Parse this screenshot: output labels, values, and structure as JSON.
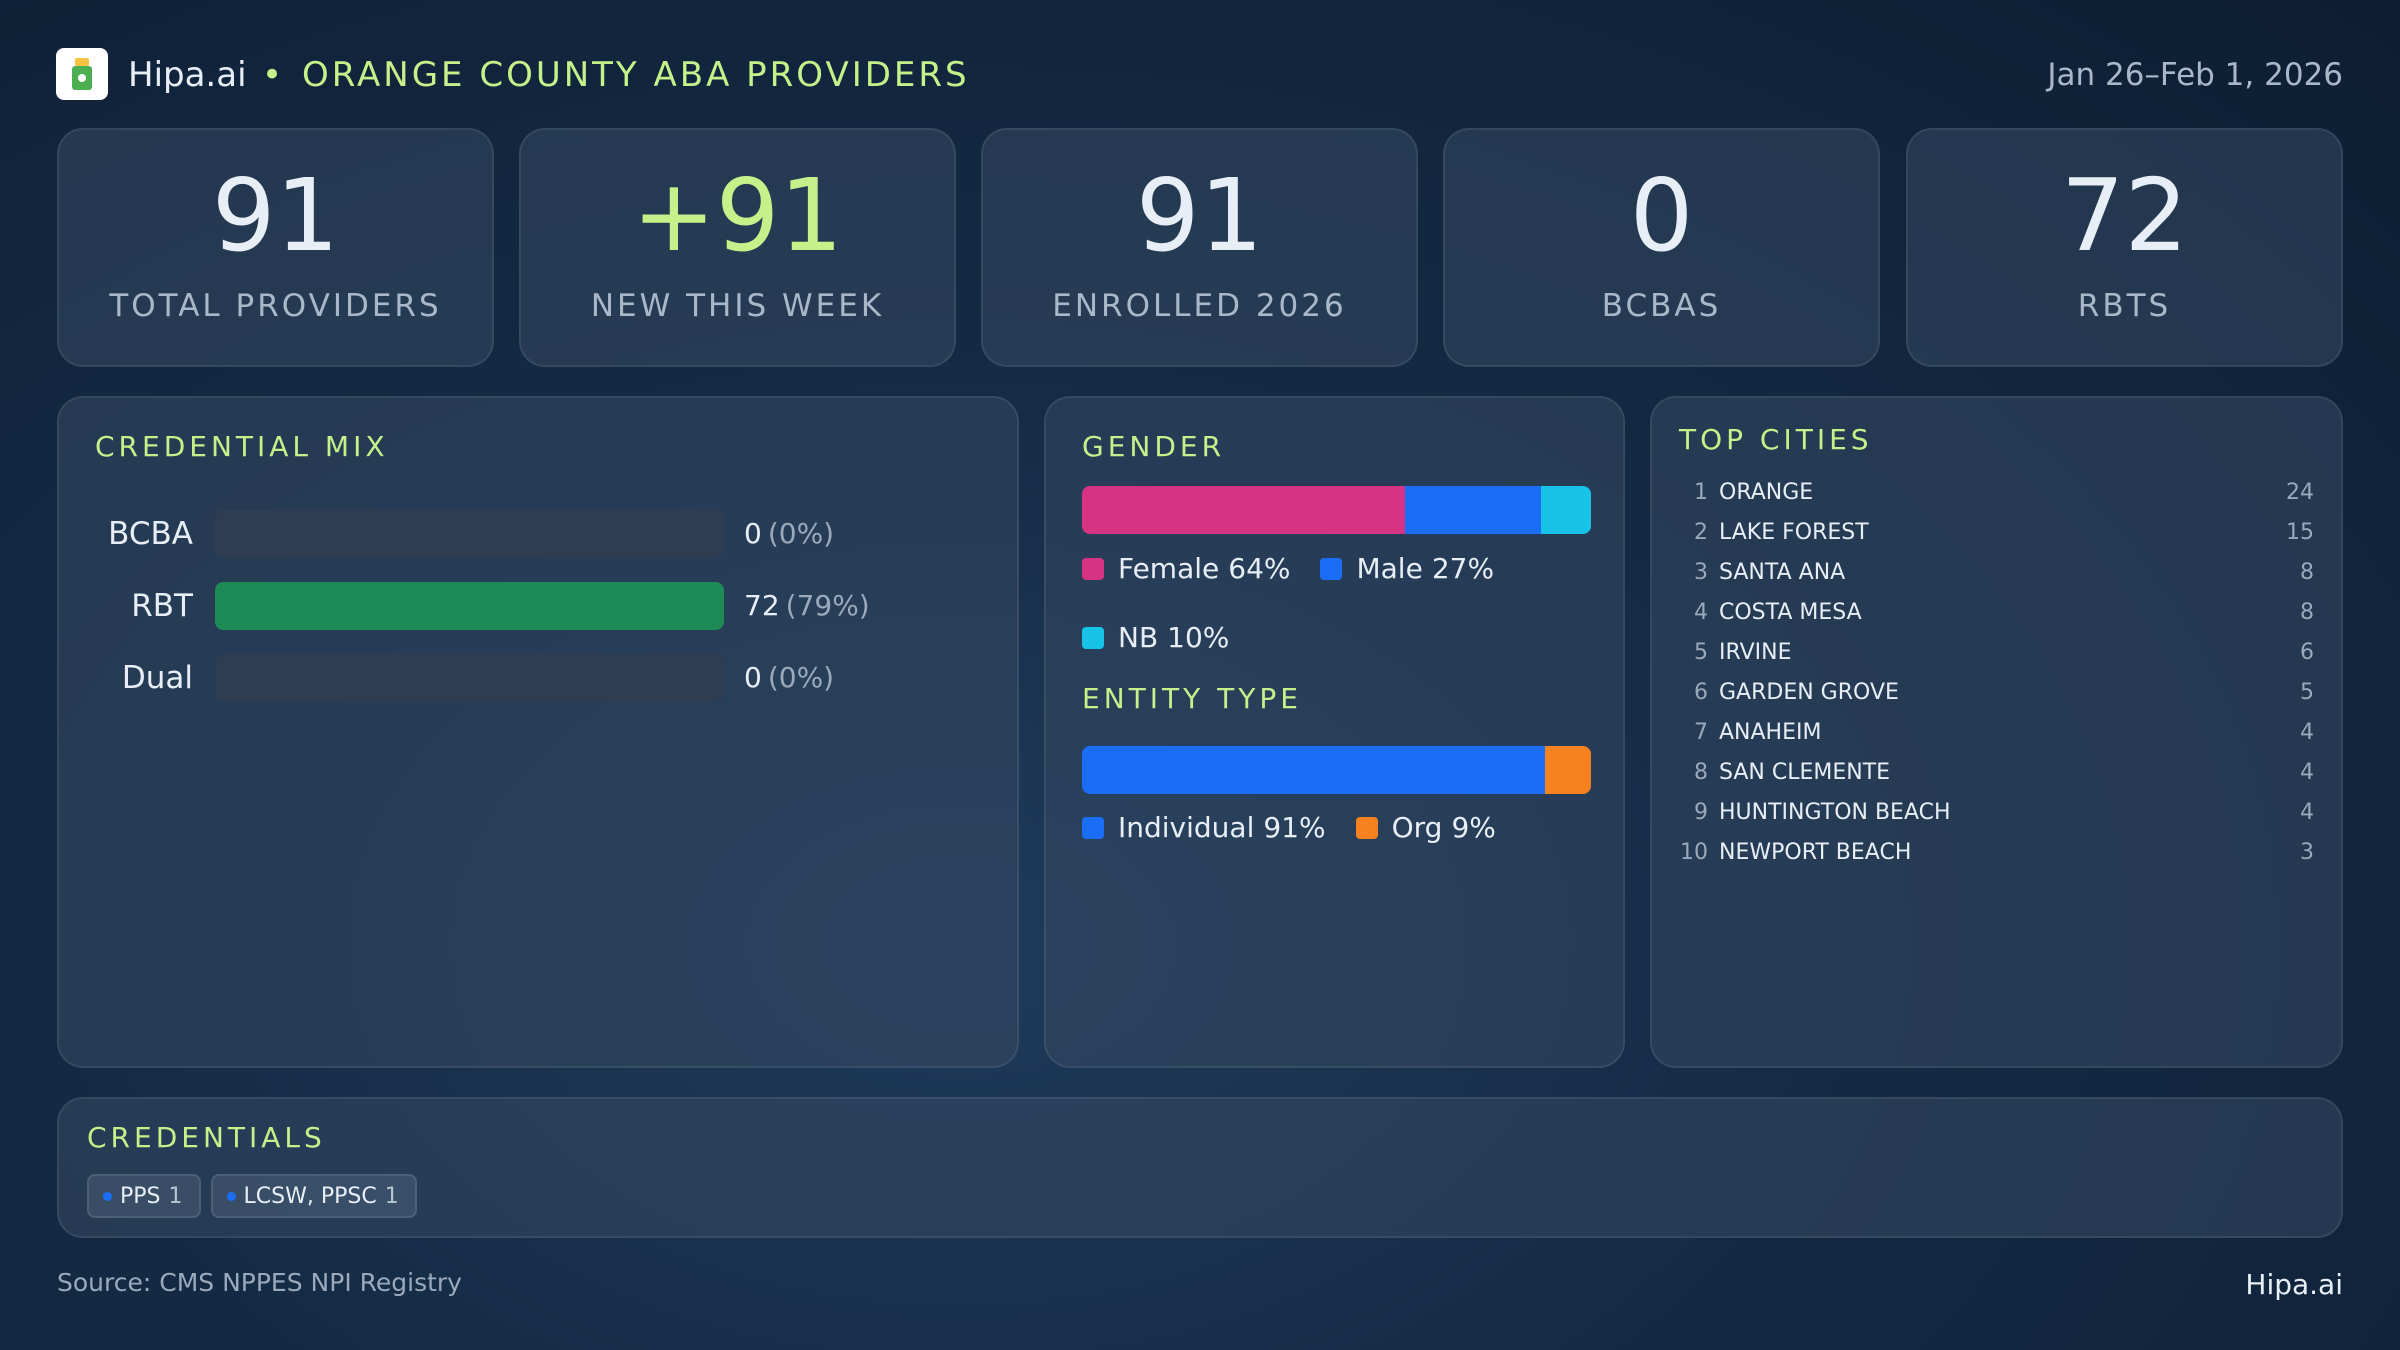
{
  "header": {
    "brand": "Hipa.ai",
    "title": "ORANGE COUNTY ABA PROVIDERS",
    "date": "Jan 26–Feb 1, 2026"
  },
  "kpis": [
    {
      "value": "91",
      "label": "TOTAL PROVIDERS"
    },
    {
      "value": "+91",
      "label": "NEW THIS WEEK"
    },
    {
      "value": "91",
      "label": "ENROLLED 2026"
    },
    {
      "value": "0",
      "label": "BCBAS"
    },
    {
      "value": "72",
      "label": "RBTS"
    }
  ],
  "credential_mix": {
    "title": "CREDENTIAL MIX",
    "color": "#1e8a55",
    "rows": [
      {
        "label": "BCBA",
        "count": 0,
        "percent_label": "(0%)"
      },
      {
        "label": "RBT",
        "count": 72,
        "percent_label": "(79%)"
      },
      {
        "label": "Dual",
        "count": 0,
        "percent_label": "(0%)"
      }
    ]
  },
  "gender": {
    "title": "GENDER",
    "segments": [
      {
        "name": "Female",
        "value": 64,
        "value_label": "64%",
        "color": "#d63384"
      },
      {
        "name": "Male",
        "value": 27,
        "value_label": "27%",
        "color": "#1a6ef5"
      },
      {
        "name": "NB",
        "value": 10,
        "value_label": "10%",
        "color": "#17c3e6"
      }
    ]
  },
  "entity_type": {
    "title": "ENTITY TYPE",
    "segments": [
      {
        "name": "Individual",
        "value": 91,
        "value_label": "91%",
        "color": "#1a6ef5"
      },
      {
        "name": "Org",
        "value": 9,
        "value_label": "9%",
        "color": "#f5821f"
      }
    ]
  },
  "top_cities": {
    "title": "TOP CITIES",
    "rows": [
      {
        "rank": 1,
        "name": "ORANGE",
        "count": 24
      },
      {
        "rank": 2,
        "name": "LAKE FOREST",
        "count": 15
      },
      {
        "rank": 3,
        "name": "SANTA ANA",
        "count": 8
      },
      {
        "rank": 4,
        "name": "COSTA MESA",
        "count": 8
      },
      {
        "rank": 5,
        "name": "IRVINE",
        "count": 6
      },
      {
        "rank": 6,
        "name": "GARDEN GROVE",
        "count": 5
      },
      {
        "rank": 7,
        "name": "ANAHEIM",
        "count": 4
      },
      {
        "rank": 8,
        "name": "SAN CLEMENTE",
        "count": 4
      },
      {
        "rank": 9,
        "name": "HUNTINGTON BEACH",
        "count": 4
      },
      {
        "rank": 10,
        "name": "NEWPORT BEACH",
        "count": 3
      }
    ]
  },
  "credentials": {
    "title": "CREDENTIALS",
    "chips": [
      {
        "name": "PPS",
        "count": 1
      },
      {
        "name": "LCSW, PPSC",
        "count": 1
      }
    ]
  },
  "footer": {
    "source": "Source: CMS NPPES NPI Registry",
    "brand": "Hipa.ai"
  }
}
